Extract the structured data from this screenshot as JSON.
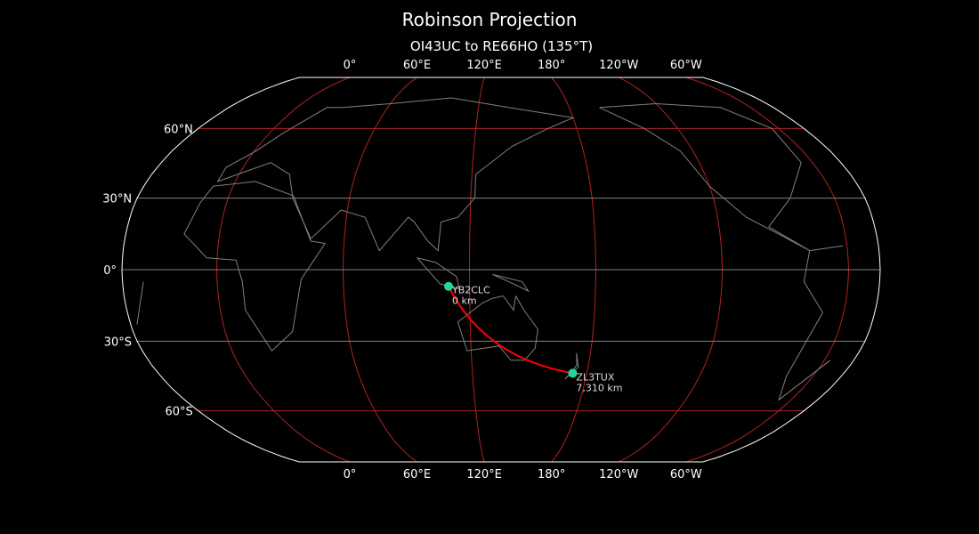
{
  "title": "Robinson Projection",
  "subtitle": "OI43UC to RE66HO (135°T)",
  "central_longitude": 135,
  "longitude_labels": [
    {
      "lon": 0,
      "label": "0°"
    },
    {
      "lon": 60,
      "label": "60°E"
    },
    {
      "lon": 120,
      "label": "120°E"
    },
    {
      "lon": 180,
      "label": "180°"
    },
    {
      "lon": -120,
      "label": "120°W"
    },
    {
      "lon": -60,
      "label": "60°W"
    }
  ],
  "latitude_labels": [
    {
      "lat": 60,
      "label": "60°N"
    },
    {
      "lat": 30,
      "label": "30°N"
    },
    {
      "lat": 0,
      "label": "0°"
    },
    {
      "lat": -30,
      "label": "30°S"
    },
    {
      "lat": -60,
      "label": "60°S"
    }
  ],
  "stations": [
    {
      "call": "YB2CLC",
      "distance": "0 km",
      "lat": -7,
      "lon": 110
    },
    {
      "call": "ZL3TUX",
      "distance": "7,310 km",
      "lat": -43.5,
      "lon": 172.6
    }
  ],
  "colors": {
    "background": "#000000",
    "coastline": "#808080",
    "meridians": "#b22222",
    "parallels_major": "#b22222",
    "parallels_minor": "#808080",
    "path": "#ff0000",
    "station": "#1fd8a0",
    "outline": "#ffffff"
  }
}
